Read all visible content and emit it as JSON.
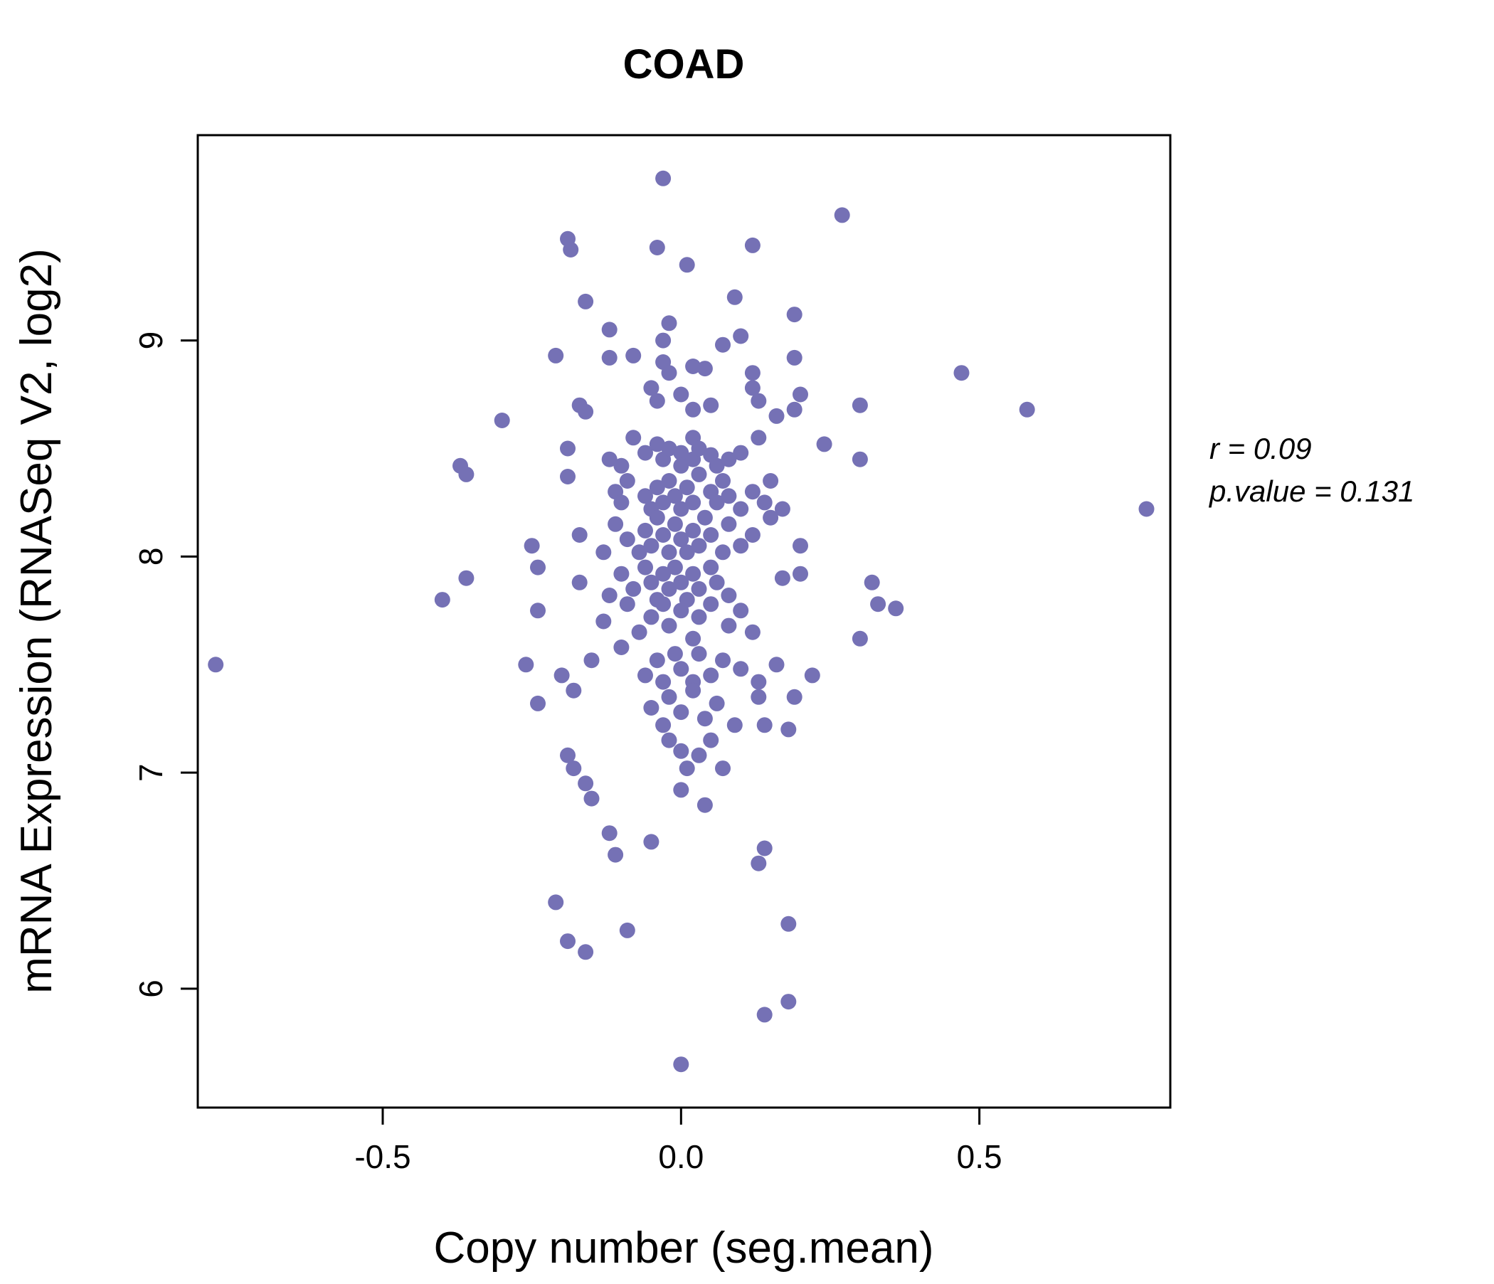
{
  "chart_data": {
    "type": "scatter",
    "title": "COAD",
    "xlabel": "Copy number (seg.mean)",
    "ylabel": "mRNA Expression (RNASeq V2, log2)",
    "xlim": [
      -0.81,
      0.82
    ],
    "ylim": [
      5.45,
      9.95
    ],
    "x_ticks": [
      -0.5,
      0.0,
      0.5
    ],
    "x_tick_labels": [
      "-0.5",
      "0.0",
      "0.5"
    ],
    "y_ticks": [
      6,
      7,
      8,
      9
    ],
    "y_tick_labels": [
      "6",
      "7",
      "8",
      "9"
    ],
    "grid": false,
    "legend": "none",
    "point_color": "#7571b5",
    "title_color": "#7571b5",
    "annotation": {
      "line1": "r = 0.09",
      "line2": "p.value = 0.131"
    },
    "points": [
      [
        -0.03,
        9.75
      ],
      [
        0.27,
        9.58
      ],
      [
        -0.19,
        9.47
      ],
      [
        -0.185,
        9.42
      ],
      [
        -0.04,
        9.43
      ],
      [
        0.12,
        9.44
      ],
      [
        0.01,
        9.35
      ],
      [
        -0.16,
        9.18
      ],
      [
        0.09,
        9.2
      ],
      [
        0.19,
        9.12
      ],
      [
        -0.12,
        9.05
      ],
      [
        -0.02,
        9.08
      ],
      [
        -0.03,
        9.0
      ],
      [
        0.07,
        8.98
      ],
      [
        0.1,
        9.02
      ],
      [
        -0.21,
        8.93
      ],
      [
        -0.12,
        8.92
      ],
      [
        -0.08,
        8.93
      ],
      [
        -0.03,
        8.9
      ],
      [
        -0.02,
        8.85
      ],
      [
        0.02,
        8.88
      ],
      [
        0.04,
        8.87
      ],
      [
        0.12,
        8.85
      ],
      [
        0.19,
        8.92
      ],
      [
        0.47,
        8.85
      ],
      [
        -0.3,
        8.63
      ],
      [
        -0.17,
        8.7
      ],
      [
        -0.16,
        8.67
      ],
      [
        -0.05,
        8.78
      ],
      [
        -0.04,
        8.72
      ],
      [
        0.0,
        8.75
      ],
      [
        0.02,
        8.68
      ],
      [
        0.05,
        8.7
      ],
      [
        0.12,
        8.78
      ],
      [
        0.13,
        8.72
      ],
      [
        0.16,
        8.65
      ],
      [
        0.19,
        8.68
      ],
      [
        0.2,
        8.75
      ],
      [
        0.3,
        8.7
      ],
      [
        0.58,
        8.68
      ],
      [
        -0.37,
        8.42
      ],
      [
        -0.19,
        8.5
      ],
      [
        -0.12,
        8.45
      ],
      [
        -0.1,
        8.42
      ],
      [
        -0.08,
        8.55
      ],
      [
        -0.06,
        8.48
      ],
      [
        -0.04,
        8.52
      ],
      [
        -0.03,
        8.45
      ],
      [
        -0.02,
        8.5
      ],
      [
        0.0,
        8.48
      ],
      [
        0.0,
        8.42
      ],
      [
        0.02,
        8.55
      ],
      [
        0.02,
        8.45
      ],
      [
        0.03,
        8.5
      ],
      [
        0.05,
        8.47
      ],
      [
        0.06,
        8.42
      ],
      [
        0.08,
        8.45
      ],
      [
        0.1,
        8.48
      ],
      [
        0.13,
        8.55
      ],
      [
        0.24,
        8.52
      ],
      [
        0.3,
        8.45
      ],
      [
        -0.36,
        8.38
      ],
      [
        -0.19,
        8.37
      ],
      [
        -0.11,
        8.3
      ],
      [
        -0.1,
        8.25
      ],
      [
        -0.09,
        8.35
      ],
      [
        -0.06,
        8.28
      ],
      [
        -0.05,
        8.22
      ],
      [
        -0.04,
        8.32
      ],
      [
        -0.03,
        8.25
      ],
      [
        -0.02,
        8.35
      ],
      [
        -0.01,
        8.28
      ],
      [
        0.0,
        8.22
      ],
      [
        0.01,
        8.32
      ],
      [
        0.02,
        8.25
      ],
      [
        0.03,
        8.38
      ],
      [
        0.05,
        8.3
      ],
      [
        0.06,
        8.25
      ],
      [
        0.07,
        8.35
      ],
      [
        0.08,
        8.28
      ],
      [
        0.1,
        8.22
      ],
      [
        0.12,
        8.3
      ],
      [
        0.14,
        8.25
      ],
      [
        0.15,
        8.35
      ],
      [
        0.17,
        8.22
      ],
      [
        0.78,
        8.22
      ],
      [
        -0.25,
        8.05
      ],
      [
        -0.17,
        8.1
      ],
      [
        -0.13,
        8.02
      ],
      [
        -0.11,
        8.15
      ],
      [
        -0.09,
        8.08
      ],
      [
        -0.07,
        8.02
      ],
      [
        -0.06,
        8.12
      ],
      [
        -0.05,
        8.05
      ],
      [
        -0.04,
        8.18
      ],
      [
        -0.03,
        8.1
      ],
      [
        -0.02,
        8.02
      ],
      [
        -0.01,
        8.15
      ],
      [
        0.0,
        8.08
      ],
      [
        0.01,
        8.02
      ],
      [
        0.02,
        8.12
      ],
      [
        0.03,
        8.05
      ],
      [
        0.04,
        8.18
      ],
      [
        0.05,
        8.1
      ],
      [
        0.07,
        8.02
      ],
      [
        0.08,
        8.15
      ],
      [
        0.1,
        8.05
      ],
      [
        0.12,
        8.1
      ],
      [
        0.15,
        8.18
      ],
      [
        0.2,
        8.05
      ],
      [
        -0.4,
        7.8
      ],
      [
        -0.36,
        7.9
      ],
      [
        -0.24,
        7.95
      ],
      [
        -0.17,
        7.88
      ],
      [
        -0.12,
        7.82
      ],
      [
        -0.1,
        7.92
      ],
      [
        -0.08,
        7.85
      ],
      [
        -0.06,
        7.95
      ],
      [
        -0.05,
        7.88
      ],
      [
        -0.04,
        7.8
      ],
      [
        -0.03,
        7.92
      ],
      [
        -0.02,
        7.85
      ],
      [
        -0.01,
        7.95
      ],
      [
        0.0,
        7.88
      ],
      [
        0.01,
        7.8
      ],
      [
        0.02,
        7.92
      ],
      [
        0.03,
        7.85
      ],
      [
        0.05,
        7.95
      ],
      [
        0.06,
        7.88
      ],
      [
        0.08,
        7.82
      ],
      [
        0.17,
        7.9
      ],
      [
        0.2,
        7.92
      ],
      [
        0.32,
        7.88
      ],
      [
        0.33,
        7.78
      ],
      [
        0.36,
        7.76
      ],
      [
        -0.24,
        7.75
      ],
      [
        -0.13,
        7.7
      ],
      [
        -0.09,
        7.78
      ],
      [
        -0.07,
        7.65
      ],
      [
        -0.05,
        7.72
      ],
      [
        -0.03,
        7.78
      ],
      [
        -0.02,
        7.68
      ],
      [
        0.0,
        7.75
      ],
      [
        0.02,
        7.62
      ],
      [
        0.03,
        7.72
      ],
      [
        0.05,
        7.78
      ],
      [
        0.08,
        7.68
      ],
      [
        0.1,
        7.75
      ],
      [
        0.12,
        7.65
      ],
      [
        0.3,
        7.62
      ],
      [
        -0.78,
        7.5
      ],
      [
        -0.26,
        7.5
      ],
      [
        -0.2,
        7.45
      ],
      [
        -0.15,
        7.52
      ],
      [
        -0.1,
        7.58
      ],
      [
        -0.06,
        7.45
      ],
      [
        -0.04,
        7.52
      ],
      [
        -0.03,
        7.42
      ],
      [
        -0.01,
        7.55
      ],
      [
        0.0,
        7.48
      ],
      [
        0.02,
        7.42
      ],
      [
        0.03,
        7.55
      ],
      [
        0.05,
        7.45
      ],
      [
        0.07,
        7.52
      ],
      [
        0.1,
        7.48
      ],
      [
        0.13,
        7.42
      ],
      [
        0.16,
        7.5
      ],
      [
        0.22,
        7.45
      ],
      [
        -0.24,
        7.32
      ],
      [
        -0.18,
        7.38
      ],
      [
        -0.05,
        7.3
      ],
      [
        -0.03,
        7.22
      ],
      [
        -0.02,
        7.35
      ],
      [
        0.0,
        7.28
      ],
      [
        0.02,
        7.38
      ],
      [
        0.04,
        7.25
      ],
      [
        0.06,
        7.32
      ],
      [
        0.09,
        7.22
      ],
      [
        0.13,
        7.35
      ],
      [
        0.14,
        7.22
      ],
      [
        0.18,
        7.2
      ],
      [
        0.19,
        7.35
      ],
      [
        -0.19,
        7.08
      ],
      [
        -0.18,
        7.02
      ],
      [
        -0.02,
        7.15
      ],
      [
        0.0,
        7.1
      ],
      [
        0.01,
        7.02
      ],
      [
        0.03,
        7.08
      ],
      [
        0.05,
        7.15
      ],
      [
        0.07,
        7.02
      ],
      [
        -0.16,
        6.95
      ],
      [
        -0.15,
        6.88
      ],
      [
        0.0,
        6.92
      ],
      [
        0.04,
        6.85
      ],
      [
        -0.12,
        6.72
      ],
      [
        -0.11,
        6.62
      ],
      [
        -0.05,
        6.68
      ],
      [
        0.13,
        6.58
      ],
      [
        0.14,
        6.65
      ],
      [
        -0.21,
        6.4
      ],
      [
        -0.19,
        6.22
      ],
      [
        -0.16,
        6.17
      ],
      [
        -0.09,
        6.27
      ],
      [
        0.18,
        6.3
      ],
      [
        0.14,
        5.88
      ],
      [
        0.18,
        5.94
      ],
      [
        0.0,
        5.65
      ]
    ]
  }
}
